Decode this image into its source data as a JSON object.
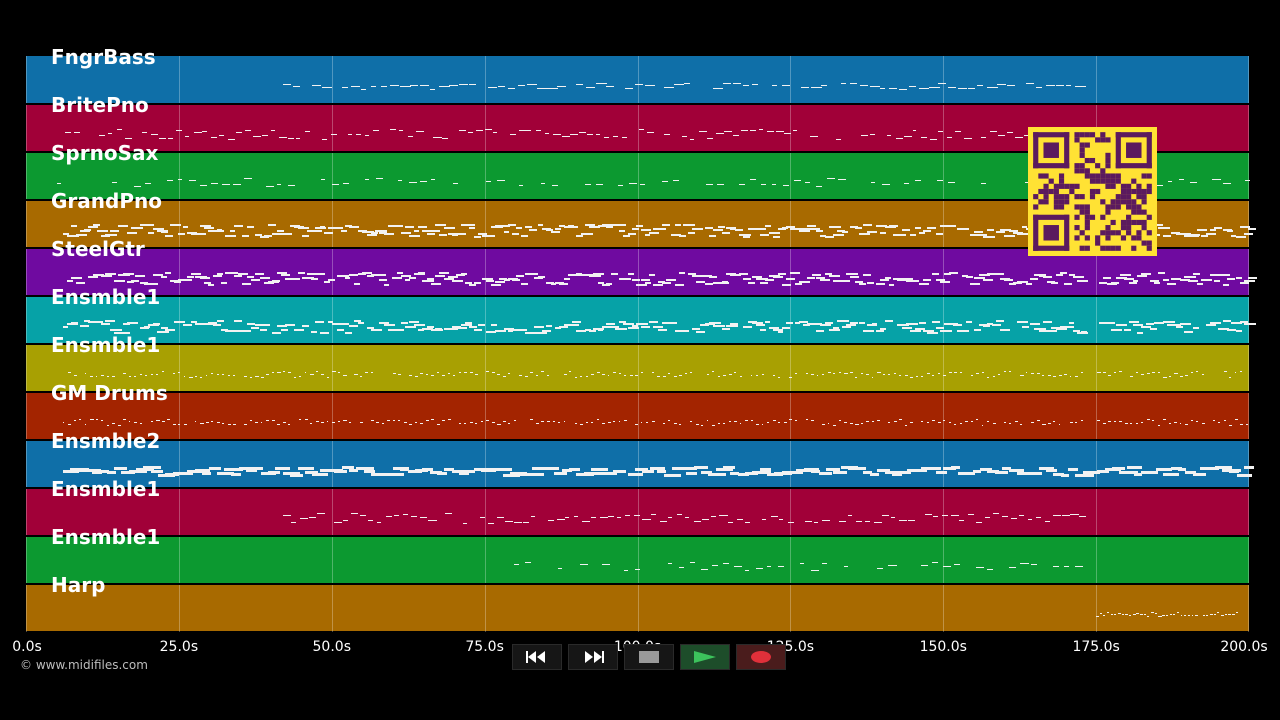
{
  "tracks": [
    {
      "label": "FngrBass",
      "color": "#0f6fa8",
      "notes": "bass"
    },
    {
      "label": "BritePno",
      "color": "#a10038",
      "notes": "line"
    },
    {
      "label": "SprnoSax",
      "color": "#0c9930",
      "notes": "sparse"
    },
    {
      "label": "GrandPno",
      "color": "#a86a00",
      "notes": "dense"
    },
    {
      "label": "SteelGtr",
      "color": "#6f0aa0",
      "notes": "dense"
    },
    {
      "label": "Ensmble1",
      "color": "#06a2a7",
      "notes": "dense"
    },
    {
      "label": "Ensmble1",
      "color": "#a8a002",
      "notes": "dotted"
    },
    {
      "label": "GM Drums",
      "color": "#a32400",
      "notes": "dotted"
    },
    {
      "label": "Ensmble2",
      "color": "#0f6fa8",
      "notes": "thick"
    },
    {
      "label": "Ensmble1",
      "color": "#a10038",
      "notes": "line"
    },
    {
      "label": "Ensmble1",
      "color": "#0c9930",
      "notes": "sparse"
    },
    {
      "label": "Harp",
      "color": "#a86a00",
      "notes": "tail"
    }
  ],
  "time_axis": {
    "ticks": [
      "0.0s",
      "25.0s",
      "50.0s",
      "75.0s",
      "100.0s",
      "125.0s",
      "150.0s",
      "175.0s",
      "200.0s"
    ],
    "range": [
      0,
      200
    ]
  },
  "copyright": "© www.midifiles.com",
  "controls": {
    "rewind": "rewind-icon",
    "fast_forward": "fast-forward-icon",
    "stop": "stop-icon",
    "play": "play-icon",
    "record": "record-icon"
  },
  "colors": {
    "play": "#2e9a47",
    "record": "#e0303a",
    "stop": "#9a9a9a",
    "qr": "#ffe234",
    "qr_dark": "#5b1a5e"
  }
}
